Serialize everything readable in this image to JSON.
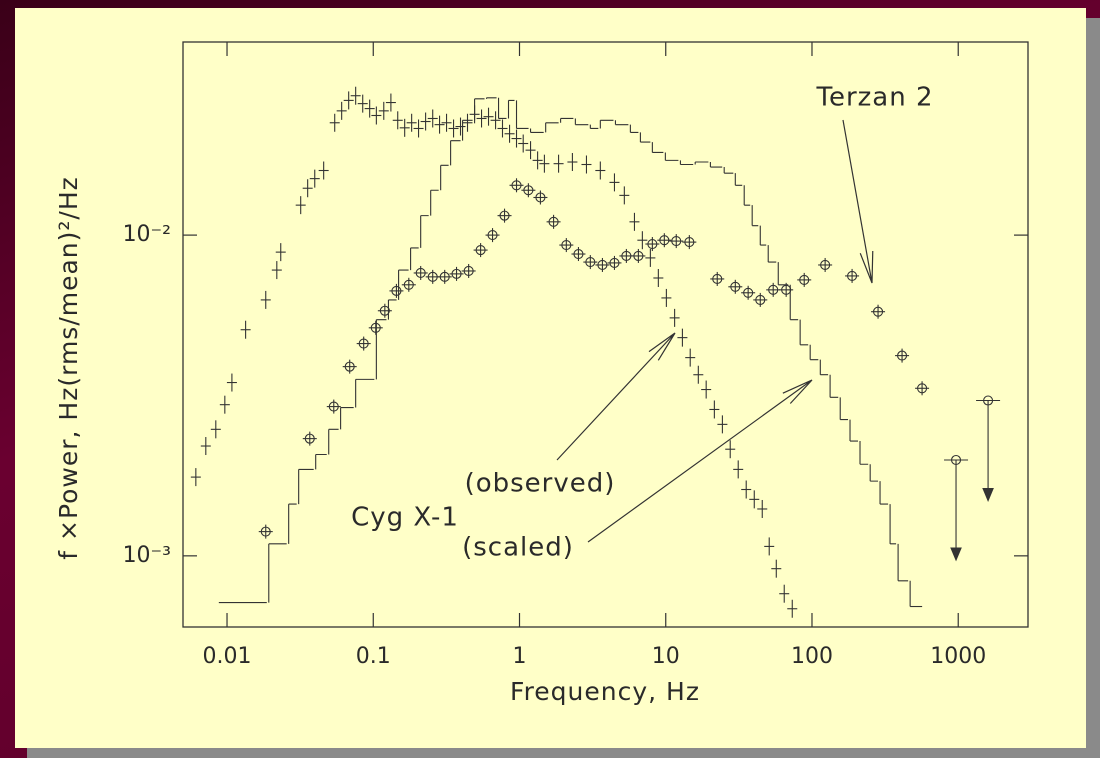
{
  "chart_data": {
    "type": "scatter",
    "x_label": "Frequency, Hz",
    "y_label": "f ×Power, Hz(rms/mean)²/Hz",
    "log_x": true,
    "log_y": true,
    "xlim": [
      0.005,
      3000
    ],
    "ylim": [
      0.0006,
      0.04
    ],
    "xticks": [
      0.01,
      0.1,
      1,
      10,
      100,
      1000
    ],
    "yticks": [
      {
        "value": 0.01,
        "label": "10⁻²"
      },
      {
        "value": 0.001,
        "label": "10⁻³"
      }
    ],
    "color": "#333333",
    "series": [
      {
        "name": "Terzan 2",
        "marker": "circle",
        "color": "#333333",
        "x": [
          0.0184,
          0.0368,
          0.0537,
          0.069,
          0.086,
          0.104,
          0.12,
          0.144,
          0.175,
          0.211,
          0.255,
          0.308,
          0.371,
          0.449,
          0.542,
          0.654,
          0.79,
          0.954,
          1.15,
          1.39,
          1.71,
          2.09,
          2.53,
          3.05,
          3.69,
          4.46,
          5.38,
          6.5,
          8.1,
          9.78,
          11.8,
          14.5,
          22.5,
          29.9,
          36.6,
          44.3,
          54.3,
          66.6,
          88.5,
          123,
          188,
          283,
          413,
          566,
          966,
          1600
        ],
        "values": [
          0.00119,
          0.00232,
          0.00292,
          0.00389,
          0.00459,
          0.00514,
          0.00581,
          0.0067,
          0.007,
          0.00762,
          0.00741,
          0.00741,
          0.00757,
          0.00773,
          0.00898,
          0.01,
          0.0115,
          0.0143,
          0.0138,
          0.0131,
          0.011,
          0.00931,
          0.00873,
          0.00824,
          0.00807,
          0.00819,
          0.00861,
          0.00861,
          0.00938,
          0.00964,
          0.00958,
          0.00951,
          0.0073,
          0.0069,
          0.00661,
          0.00628,
          0.00675,
          0.00675,
          0.00725,
          0.00807,
          0.00746,
          0.00577,
          0.00421,
          0.00333,
          0.00199,
          0.00305
        ],
        "upper_limits": [
          false,
          false,
          false,
          false,
          false,
          false,
          false,
          false,
          false,
          false,
          false,
          false,
          false,
          false,
          false,
          false,
          false,
          false,
          false,
          false,
          false,
          false,
          false,
          false,
          false,
          false,
          false,
          false,
          false,
          false,
          false,
          false,
          false,
          false,
          false,
          false,
          false,
          false,
          false,
          false,
          false,
          false,
          false,
          false,
          true,
          true
        ]
      },
      {
        "name": "(observed)",
        "marker": "cross",
        "color": "#333333",
        "x": [
          0.00612,
          0.00716,
          0.00838,
          0.00966,
          0.0108,
          0.0134,
          0.0184,
          0.0219,
          0.0233,
          0.0319,
          0.0356,
          0.0398,
          0.0458,
          0.0545,
          0.0608,
          0.0679,
          0.0758,
          0.0847,
          0.0945,
          0.105,
          0.118,
          0.132,
          0.147,
          0.164,
          0.183,
          0.204,
          0.228,
          0.255,
          0.284,
          0.317,
          0.354,
          0.395,
          0.441,
          0.493,
          0.55,
          0.614,
          0.686,
          0.765,
          0.855,
          0.954,
          1.06,
          1.19,
          1.33,
          1.48,
          1.85,
          2.3,
          2.87,
          3.57,
          4.46,
          5.21,
          6.11,
          6.92,
          7.85,
          8.9,
          10.1,
          11.5,
          13,
          14.7,
          16.7,
          18.9,
          21.5,
          24.4,
          27.6,
          31.3,
          35.5,
          40.3,
          45.7,
          51,
          57,
          64.6,
          73.3
        ],
        "values": [
          0.00176,
          0.0022,
          0.00248,
          0.00296,
          0.00347,
          0.00507,
          0.00628,
          0.00778,
          0.00885,
          0.0124,
          0.014,
          0.015,
          0.0159,
          0.0224,
          0.0244,
          0.0263,
          0.0272,
          0.0257,
          0.0248,
          0.0236,
          0.0244,
          0.0259,
          0.0228,
          0.0216,
          0.0224,
          0.0215,
          0.0226,
          0.0231,
          0.0221,
          0.0224,
          0.0215,
          0.0218,
          0.0224,
          0.0238,
          0.0231,
          0.0234,
          0.0228,
          0.0215,
          0.0207,
          0.02,
          0.0193,
          0.0184,
          0.0171,
          0.0167,
          0.0167,
          0.0169,
          0.0166,
          0.0159,
          0.0146,
          0.0133,
          0.011,
          0.00964,
          0.00849,
          0.00735,
          0.00637,
          0.00552,
          0.00479,
          0.00415,
          0.00367,
          0.0033,
          0.00286,
          0.00257,
          0.00215,
          0.00186,
          0.00161,
          0.0015,
          0.0014,
          0.00107,
          0.000912,
          0.000762,
          0.000684
        ]
      },
      {
        "name": "(scaled)",
        "marker": "step",
        "color": "#333333",
        "x": [
          0.00879,
          0.0193,
          0.0264,
          0.0309,
          0.0404,
          0.0496,
          0.0598,
          0.0758,
          0.105,
          0.127,
          0.149,
          0.18,
          0.211,
          0.247,
          0.289,
          0.338,
          0.408,
          0.493,
          0.595,
          0.719,
          0.841,
          0.954,
          1.19,
          1.51,
          1.91,
          2.41,
          3.05,
          3.57,
          4.53,
          5.73,
          6.71,
          8.1,
          9.94,
          12.6,
          15.9,
          20.2,
          25.1,
          29.9,
          34.4,
          39,
          44.3,
          50.2,
          58.8,
          71,
          83,
          97.2,
          114,
          133,
          156,
          182,
          213,
          250,
          292,
          342,
          388,
          469
        ],
        "values": [
          0.000715,
          0.00109,
          0.00145,
          0.00186,
          0.00207,
          0.00248,
          0.0029,
          0.00355,
          0.00545,
          0.00628,
          0.00778,
          0.00912,
          0.0115,
          0.0138,
          0.0165,
          0.0197,
          0.0228,
          0.0266,
          0.0268,
          0.0231,
          0.0263,
          0.0215,
          0.0209,
          0.0224,
          0.0231,
          0.0221,
          0.0215,
          0.0228,
          0.0221,
          0.0209,
          0.0195,
          0.0181,
          0.0171,
          0.0166,
          0.0169,
          0.0163,
          0.0156,
          0.0143,
          0.0124,
          0.0107,
          0.00931,
          0.00824,
          0.007,
          0.00545,
          0.00455,
          0.00409,
          0.00367,
          0.00312,
          0.00266,
          0.00228,
          0.00193,
          0.00171,
          0.00145,
          0.00109,
          0.000836,
          0.000695
        ]
      }
    ],
    "annotations": [
      "Cyg X-1"
    ]
  }
}
